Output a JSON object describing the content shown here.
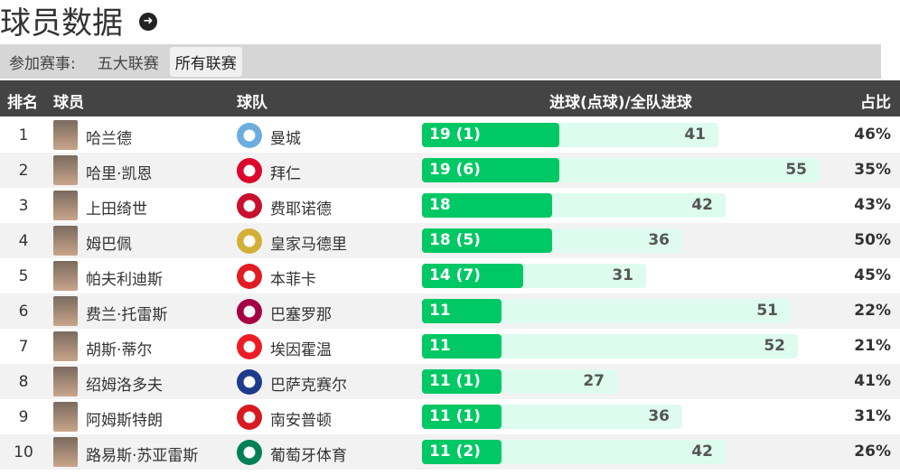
{
  "header": {
    "title": "球员数据",
    "arrow_icon": "arrow-right-circle-icon"
  },
  "filter": {
    "label": "参加赛事:",
    "options": [
      "五大联赛",
      "所有联赛"
    ],
    "selected": "所有联赛"
  },
  "table": {
    "columns": [
      "排名",
      "球员",
      "球队",
      "进球(点球)/全队进球",
      "占比"
    ],
    "rows": [
      {
        "rank": "1",
        "player": "哈兰德",
        "team": "曼城",
        "goals": 19,
        "goals_label": "19 (1)",
        "team_goals": 41,
        "team_goals_label": "41",
        "pct": "46%",
        "logo_color": "#6caddf"
      },
      {
        "rank": "2",
        "player": "哈里·凯恩",
        "team": "拜仁",
        "goals": 19,
        "goals_label": "19 (6)",
        "team_goals": 55,
        "team_goals_label": "55",
        "pct": "35%",
        "logo_color": "#dc052d"
      },
      {
        "rank": "3",
        "player": "上田绮世",
        "team": "费耶诺德",
        "goals": 18,
        "goals_label": "18",
        "team_goals": 42,
        "team_goals_label": "42",
        "pct": "43%",
        "logo_color": "#c8102e"
      },
      {
        "rank": "4",
        "player": "姆巴佩",
        "team": "皇家马德里",
        "goals": 18,
        "goals_label": "18 (5)",
        "team_goals": 36,
        "team_goals_label": "36",
        "pct": "50%",
        "logo_color": "#d4af37"
      },
      {
        "rank": "5",
        "player": "帕夫利迪斯",
        "team": "本菲卡",
        "goals": 14,
        "goals_label": "14 (7)",
        "team_goals": 31,
        "team_goals_label": "31",
        "pct": "45%",
        "logo_color": "#e31b23"
      },
      {
        "rank": "6",
        "player": "费兰·托雷斯",
        "team": "巴塞罗那",
        "goals": 11,
        "goals_label": "11",
        "team_goals": 51,
        "team_goals_label": "51",
        "pct": "22%",
        "logo_color": "#a50044"
      },
      {
        "rank": "7",
        "player": "胡斯·蒂尔",
        "team": "埃因霍温",
        "goals": 11,
        "goals_label": "11",
        "team_goals": 52,
        "team_goals_label": "52",
        "pct": "21%",
        "logo_color": "#ed1c24"
      },
      {
        "rank": "8",
        "player": "绍姆洛多夫",
        "team": "巴萨克赛尔",
        "goals": 11,
        "goals_label": "11 (1)",
        "team_goals": 27,
        "team_goals_label": "27",
        "pct": "41%",
        "logo_color": "#1e3a8a"
      },
      {
        "rank": "9",
        "player": "阿姆斯特朗",
        "team": "南安普顿",
        "goals": 11,
        "goals_label": "11 (1)",
        "team_goals": 36,
        "team_goals_label": "36",
        "pct": "31%",
        "logo_color": "#d71920"
      },
      {
        "rank": "10",
        "player": "路易斯·苏亚雷斯",
        "team": "葡萄牙体育",
        "goals": 11,
        "goals_label": "11 (2)",
        "team_goals": 42,
        "team_goals_label": "42",
        "pct": "26%",
        "logo_color": "#008057"
      }
    ]
  }
}
